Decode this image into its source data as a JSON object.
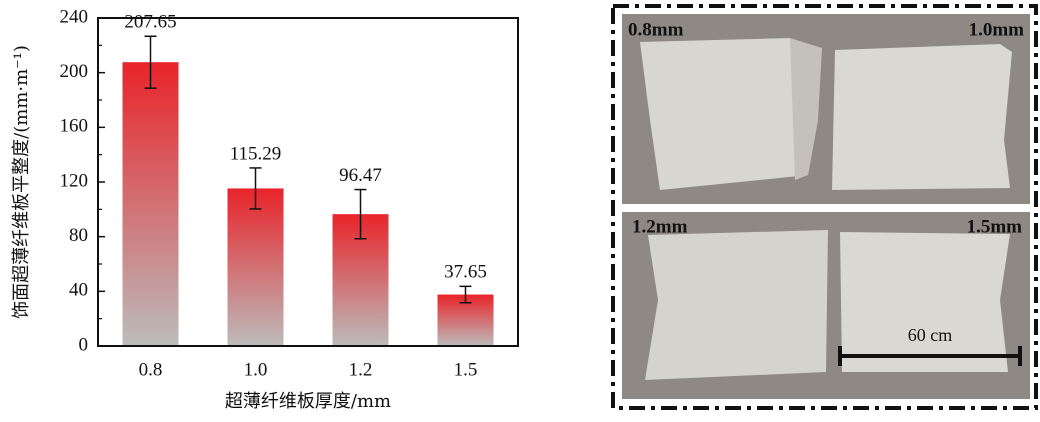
{
  "chart_data": {
    "type": "bar",
    "x_label": "超薄纤维板厚度/mm",
    "y_label": "饰面超薄纤维板平整度/(mm·m⁻¹)",
    "categories": [
      "0.8",
      "1.0",
      "1.2",
      "1.5"
    ],
    "values": [
      207.65,
      115.29,
      96.47,
      37.65
    ],
    "errors": [
      19,
      15,
      18,
      6
    ],
    "color": "#e8242a",
    "ylim": [
      0,
      240
    ],
    "yticks": [
      0,
      40,
      80,
      120,
      160,
      200,
      240
    ]
  },
  "panel": {
    "photos": [
      {
        "left_label": "0.8mm",
        "right_label": "1.0mm"
      },
      {
        "left_label": "1.2mm",
        "right_label": "1.5mm"
      }
    ],
    "scale_label": "60 cm"
  }
}
